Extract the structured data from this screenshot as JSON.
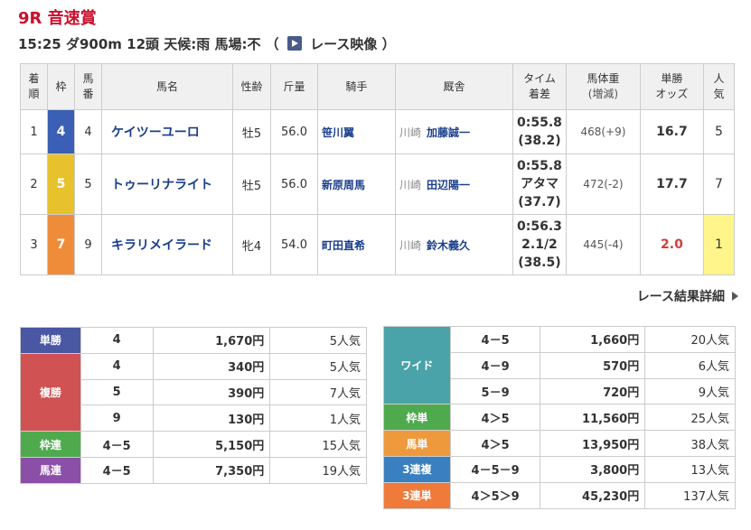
{
  "race": {
    "title": "9R 音速賞",
    "info_text": "15:25 ダ900m 12頭 天候:雨 馬場:不 （",
    "video_label": "レース映像",
    "info_close": "）"
  },
  "results": {
    "headers": {
      "rank": "着\n順",
      "waku": "枠",
      "num": "馬\n番",
      "name": "馬名",
      "sexage": "性齢",
      "weight": "斤量",
      "jockey": "騎手",
      "trainer": "厩舎",
      "time": "タイム\n着差",
      "body": "馬体重\n(増減)",
      "odds": "単勝\nオッズ",
      "pop": "人\n気"
    },
    "rows": [
      {
        "rank": "1",
        "waku": "4",
        "waku_color": "#3a5fb4",
        "num": "4",
        "name": "ケイツーユーロ",
        "sexage": "牡5",
        "kinryo": "56.0",
        "jockey": "笹川翼",
        "loc": "川崎",
        "trainer": "加藤誠一",
        "time": "0:55.8",
        "margin": "(38.2)",
        "margin2": "",
        "body": "468(+9)",
        "odds": "16.7",
        "pop": "5"
      },
      {
        "rank": "2",
        "waku": "5",
        "waku_color": "#e8c22c",
        "num": "5",
        "name": "トゥーリナライト",
        "sexage": "牡5",
        "kinryo": "56.0",
        "jockey": "新原周馬",
        "loc": "川崎",
        "trainer": "田辺陽一",
        "time": "0:55.8",
        "margin": "アタマ",
        "margin2": "(37.7)",
        "body": "472(-2)",
        "odds": "17.7",
        "pop": "7"
      },
      {
        "rank": "3",
        "waku": "7",
        "waku_color": "#ef8c3a",
        "num": "9",
        "name": "キラリメイラード",
        "sexage": "牝4",
        "kinryo": "54.0",
        "jockey": "町田直希",
        "loc": "川崎",
        "trainer": "鈴木義久",
        "time": "0:56.3",
        "margin": "2.1/2",
        "margin2": "(38.5)",
        "body": "445(-4)",
        "odds": "2.0",
        "pop": "1"
      }
    ]
  },
  "detail_link": "レース結果詳細",
  "payouts_left": [
    {
      "type": "単勝",
      "color": "#4a57a3",
      "entries": [
        {
          "combo": "4",
          "amount": "1,670円",
          "pop": "5人気"
        }
      ]
    },
    {
      "type": "複勝",
      "color": "#d05252",
      "entries": [
        {
          "combo": "4",
          "amount": "340円",
          "pop": "5人気"
        },
        {
          "combo": "5",
          "amount": "390円",
          "pop": "7人気"
        },
        {
          "combo": "9",
          "amount": "130円",
          "pop": "1人気"
        }
      ]
    },
    {
      "type": "枠連",
      "color": "#4faa4e",
      "entries": [
        {
          "combo": "4－5",
          "amount": "5,150円",
          "pop": "15人気"
        }
      ]
    },
    {
      "type": "馬連",
      "color": "#8c4fa8",
      "entries": [
        {
          "combo": "4－5",
          "amount": "7,350円",
          "pop": "19人気"
        }
      ]
    }
  ],
  "payouts_right": [
    {
      "type": "ワイド",
      "color": "#4aa3a8",
      "entries": [
        {
          "combo": "4－5",
          "amount": "1,660円",
          "pop": "20人気"
        },
        {
          "combo": "4－9",
          "amount": "570円",
          "pop": "6人気"
        },
        {
          "combo": "5－9",
          "amount": "720円",
          "pop": "9人気"
        }
      ]
    },
    {
      "type": "枠単",
      "color": "#4faa4e",
      "entries": [
        {
          "combo": "4＞5",
          "amount": "11,560円",
          "pop": "25人気"
        }
      ]
    },
    {
      "type": "馬単",
      "color": "#ee9a3c",
      "entries": [
        {
          "combo": "4＞5",
          "amount": "13,950円",
          "pop": "38人気"
        }
      ]
    },
    {
      "type": "3連複",
      "color": "#3a7fc0",
      "entries": [
        {
          "combo": "4－5－9",
          "amount": "3,800円",
          "pop": "13人気"
        }
      ]
    },
    {
      "type": "3連単",
      "color": "#ef7a3a",
      "entries": [
        {
          "combo": "4＞5＞9",
          "amount": "45,230円",
          "pop": "137人気"
        }
      ]
    }
  ]
}
